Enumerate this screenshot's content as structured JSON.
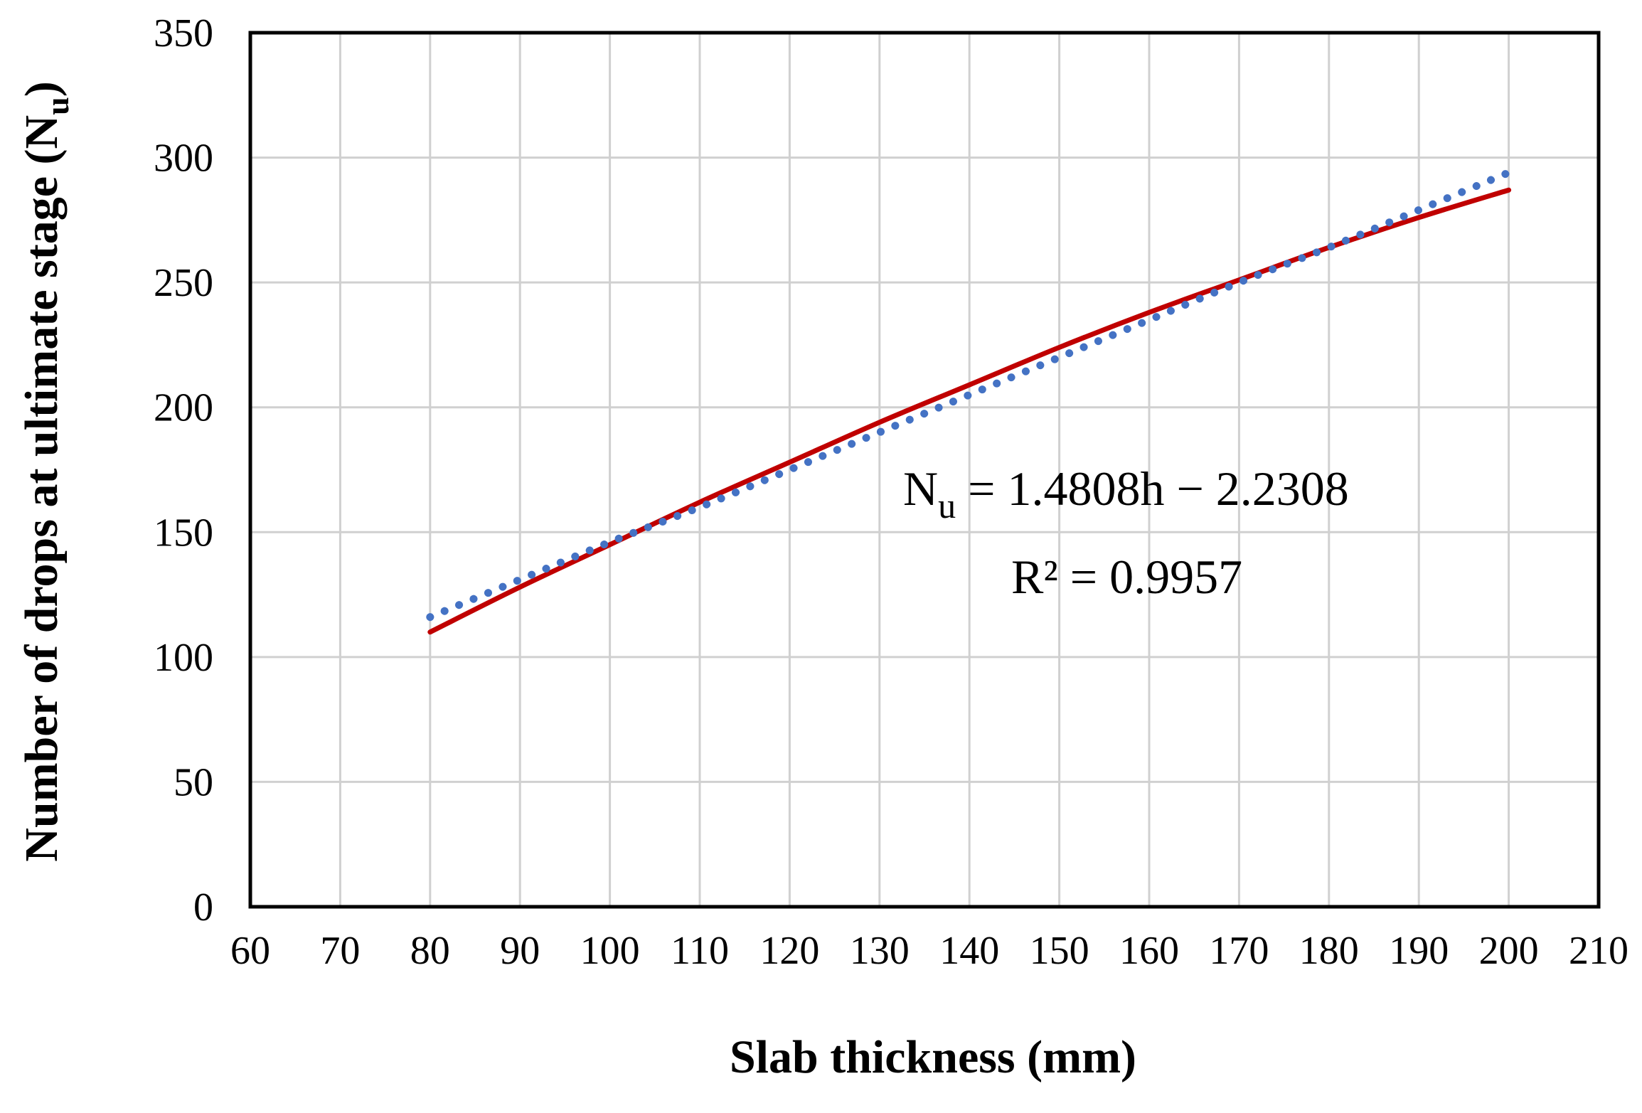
{
  "chart_data": {
    "type": "line",
    "xlabel": "Slab thickness (mm)",
    "ylabel_main": "Number of drops at ultimate stage (N",
    "ylabel_sub": "u",
    "ylabel_close": ")",
    "xlim": [
      60,
      210
    ],
    "ylim": [
      0,
      350
    ],
    "xticks": [
      60,
      70,
      80,
      90,
      100,
      110,
      120,
      130,
      140,
      150,
      160,
      170,
      180,
      190,
      200,
      210
    ],
    "yticks": [
      0,
      50,
      100,
      150,
      200,
      250,
      300,
      350
    ],
    "grid": true,
    "series": [
      {
        "style": "solid",
        "color": "#C00000",
        "x": [
          80,
          90,
          100,
          110,
          120,
          130,
          140,
          150,
          160,
          170,
          180,
          190,
          200
        ],
        "y": [
          110,
          128,
          145,
          162,
          178,
          194,
          209,
          224,
          238,
          251,
          264,
          276,
          287
        ]
      },
      {
        "style": "dotted",
        "color": "#4472C4",
        "x": [
          80,
          90,
          100,
          110,
          120,
          130,
          140,
          150,
          160,
          170,
          180,
          190,
          200
        ],
        "y": [
          116,
          131,
          146,
          160,
          175,
          190,
          205,
          220,
          235,
          250,
          264,
          279,
          294
        ]
      }
    ],
    "annotation": {
      "eq_prefix": "N",
      "eq_sub": "u",
      "eq_rest": " = 1.4808h − 2.2308",
      "r2": "R² = 0.9957"
    }
  }
}
